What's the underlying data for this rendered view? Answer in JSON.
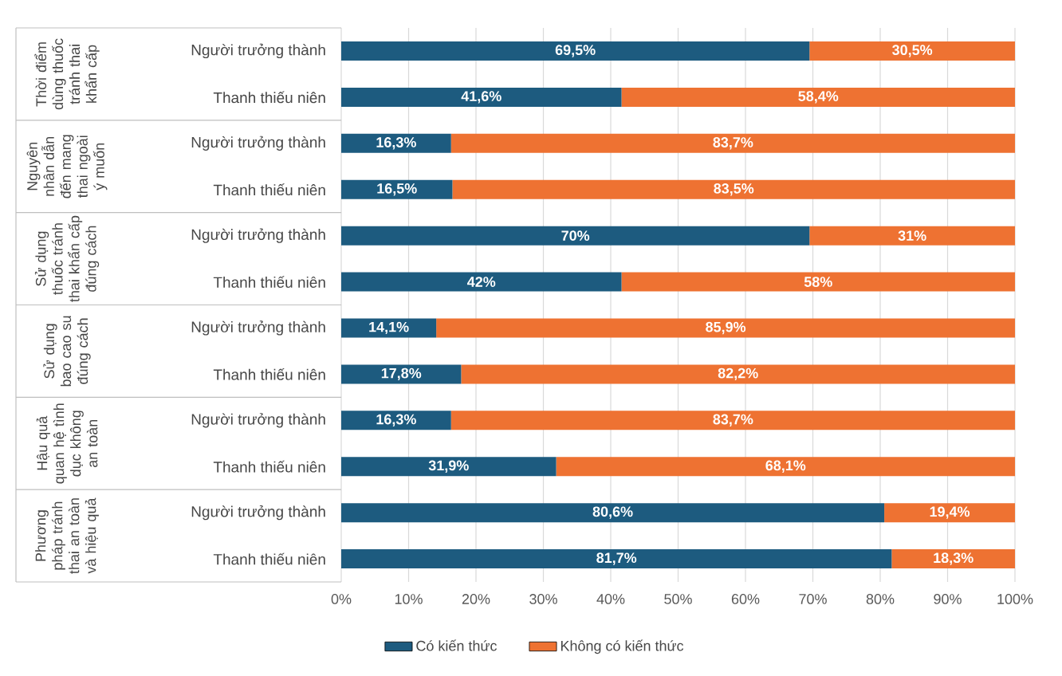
{
  "chart_data": {
    "type": "bar",
    "orientation": "horizontal",
    "stacked": true,
    "categories": [
      "Người trưởng thành",
      "Thanh thiếu niên",
      "Người trưởng thành",
      "Thanh thiếu niên",
      "Người trưởng thành",
      "Thanh thiếu niên",
      "Người trưởng thành",
      "Thanh thiếu niên",
      "Người trưởng thành",
      "Thanh thiếu niên",
      "Người trưởng thành",
      "Thanh thiếu niên"
    ],
    "series": [
      {
        "name": "Có kiến thức",
        "color": "#1d5b7f",
        "values": [
          69.5,
          41.6,
          16.3,
          16.5,
          69.5,
          41.6,
          14.1,
          17.8,
          16.3,
          31.9,
          80.6,
          81.7
        ],
        "value_labels": [
          "69,5%",
          "41,6%",
          "16,3%",
          "16,5%",
          "70%",
          "42%",
          "14,1%",
          "17,8%",
          "16,3%",
          "31,9%",
          "80,6%",
          "81,7%"
        ]
      },
      {
        "name": "Không có kiến thức",
        "color": "#ee7232",
        "values": [
          30.5,
          58.4,
          83.7,
          83.5,
          30.5,
          58.4,
          85.9,
          82.2,
          83.7,
          68.1,
          19.4,
          18.3
        ],
        "value_labels": [
          "30,5%",
          "58,4%",
          "83,7%",
          "83,5%",
          "31%",
          "58%",
          "85,9%",
          "82,2%",
          "83,7%",
          "68,1%",
          "19,4%",
          "18,3%"
        ]
      }
    ],
    "xlim": [
      0,
      100
    ],
    "xticks": [
      {
        "value": 0,
        "label": "0%"
      },
      {
        "value": 10,
        "label": "10%"
      },
      {
        "value": 20,
        "label": "20%"
      },
      {
        "value": 30,
        "label": "30%"
      },
      {
        "value": 40,
        "label": "40%"
      },
      {
        "value": 50,
        "label": "50%"
      },
      {
        "value": 60,
        "label": "60%"
      },
      {
        "value": 70,
        "label": "70%"
      },
      {
        "value": 80,
        "label": "80%"
      },
      {
        "value": 90,
        "label": "90%"
      },
      {
        "value": 100,
        "label": "100%"
      }
    ],
    "grid": "x",
    "legend": "bottom",
    "annotations": [
      "Thời điểm dùng thuốc tránh thai khẩn cấp",
      "Nguyên nhân dẫn đến mang thai ngoài ý muốn",
      "Sử dụng thuốc tránh thai khẩn cấp đúng cách",
      "Sử dụng bao cao su đúng cách",
      "Hậu quả quan hệ tình dục không an toàn",
      "Phương pháp tránh thai an toàn và hiệu quả"
    ]
  }
}
